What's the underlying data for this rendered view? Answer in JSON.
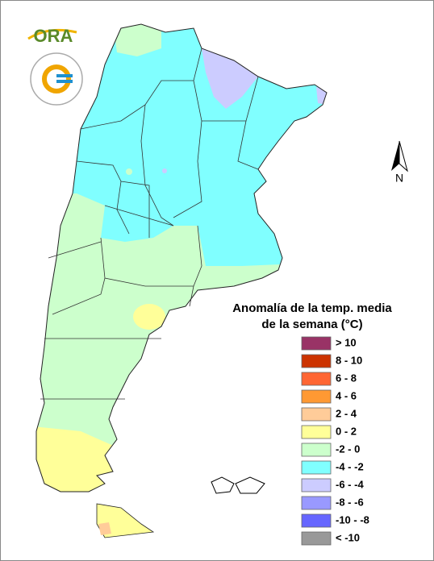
{
  "logo": {
    "text": "ORA"
  },
  "north_arrow": {
    "label": "N"
  },
  "legend": {
    "title": [
      "Anomalía de la temp. media",
      "de la semana (°C)"
    ],
    "items": [
      {
        "label": "> 10",
        "color": "#993366"
      },
      {
        "label": "8 - 10",
        "color": "#cc3300"
      },
      {
        "label": "6 - 8",
        "color": "#ff6633"
      },
      {
        "label": "4 - 6",
        "color": "#ff9933"
      },
      {
        "label": "2 - 4",
        "color": "#ffcc99"
      },
      {
        "label": "0 - 2",
        "color": "#ffff99"
      },
      {
        "label": "-2 - 0",
        "color": "#ccffcc"
      },
      {
        "label": "-4 - -2",
        "color": "#80ffff"
      },
      {
        "label": "-6 - -4",
        "color": "#ccccff"
      },
      {
        "label": "-8 - -6",
        "color": "#9999ff"
      },
      {
        "label": "-10 - -8",
        "color": "#6666ff"
      },
      {
        "label": "< -10",
        "color": "#999999"
      }
    ]
  }
}
